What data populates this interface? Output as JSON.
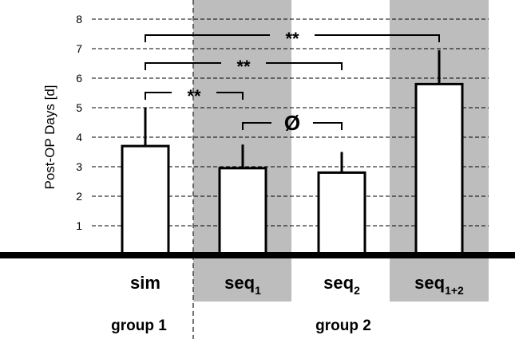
{
  "chart_data": {
    "type": "bar",
    "ylabel": "Post-OP Days [d]",
    "ylim": [
      0,
      8
    ],
    "yticks": [
      "1",
      "2",
      "3",
      "4",
      "5",
      "6",
      "7",
      "8"
    ],
    "grid": "dashed horizontal",
    "categories": [
      {
        "base": "sim",
        "sub": ""
      },
      {
        "base": "seq",
        "sub": "1"
      },
      {
        "base": "seq",
        "sub": "2"
      },
      {
        "base": "seq",
        "sub": "1+2"
      }
    ],
    "values": [
      3.7,
      2.95,
      2.8,
      5.8
    ],
    "error_upper": [
      5.0,
      3.75,
      3.5,
      6.95
    ],
    "groups": [
      {
        "label": "group 1",
        "categories": [
          0
        ]
      },
      {
        "label": "group 2",
        "categories": [
          1,
          2,
          3
        ]
      }
    ],
    "shaded_categories": [
      1,
      3
    ],
    "comparisons": [
      {
        "from": 0,
        "to": 3,
        "label": "**"
      },
      {
        "from": 0,
        "to": 2,
        "label": "**"
      },
      {
        "from": 0,
        "to": 1,
        "label": "**"
      },
      {
        "from": 1,
        "to": 2,
        "label": "Ø"
      }
    ],
    "colors": {
      "bar_fill": "#ffffff",
      "bar_stroke": "#000000",
      "shade": "#bdbdbd",
      "grid": "#000000",
      "text": "#000000"
    }
  }
}
